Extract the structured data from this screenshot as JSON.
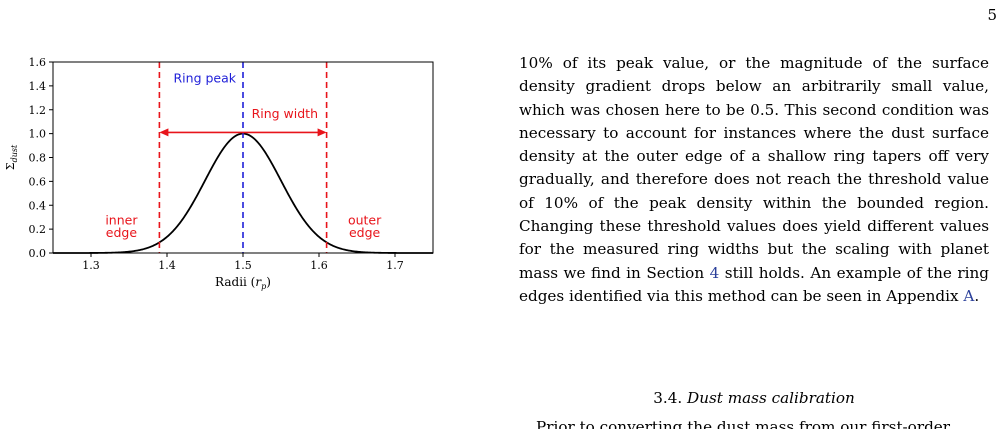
{
  "page": {
    "number": "5"
  },
  "chart_data": {
    "type": "line",
    "title": "",
    "xlabel": "Radii (r_p)",
    "ylabel": "Σ_dust",
    "xlim": [
      1.25,
      1.75
    ],
    "ylim": [
      0.0,
      1.6
    ],
    "xticks": [
      "1.3",
      "1.4",
      "1.5",
      "1.6",
      "1.7"
    ],
    "yticks": [
      "0.0",
      "0.2",
      "0.4",
      "0.6",
      "0.8",
      "1.0",
      "1.2",
      "1.4",
      "1.6"
    ],
    "series": [
      {
        "curve": "gaussian",
        "center": 1.5,
        "sigma": 0.05,
        "peak": 1.0,
        "color": "#000000"
      }
    ],
    "vlines": [
      {
        "x": 1.39,
        "color": "#e8141b",
        "style": "dashed"
      },
      {
        "x": 1.5,
        "color": "#1f1fd8",
        "style": "dashed"
      },
      {
        "x": 1.61,
        "color": "#e8141b",
        "style": "dashed"
      }
    ],
    "annotations": {
      "ring_peak": "Ring peak",
      "ring_width": "Ring width",
      "inner_edge_1": "inner",
      "inner_edge_2": "edge",
      "outer_edge_1": "outer",
      "outer_edge_2": "edge"
    },
    "width_arrow": {
      "x_from": 1.39,
      "x_to": 1.61,
      "y": 1.01
    }
  },
  "text": {
    "para1_a": "10% of its peak value, or the magnitude of the surface density gradient drops below an arbitrarily small value, which was chosen here to be 0.5. This second condition was necessary to account for instances where the dust surface density at the outer edge of a shallow ring tapers off very gradually, and therefore does not reach the threshold value of 10% of the peak density within the bounded region. Changing these threshold values does yield different values for the measured ring widths but the scaling with planet mass we find in Section ",
    "para1_ref1": "4",
    "para1_b": " still holds. An example of the ring edges identified via this method can be seen in Appendix ",
    "para1_ref2": "A",
    "para1_c": ".",
    "section_number": "3.4.",
    "section_title": "Dust mass calibration",
    "cut_line": "Prior to converting the dust mass from our first-order"
  }
}
